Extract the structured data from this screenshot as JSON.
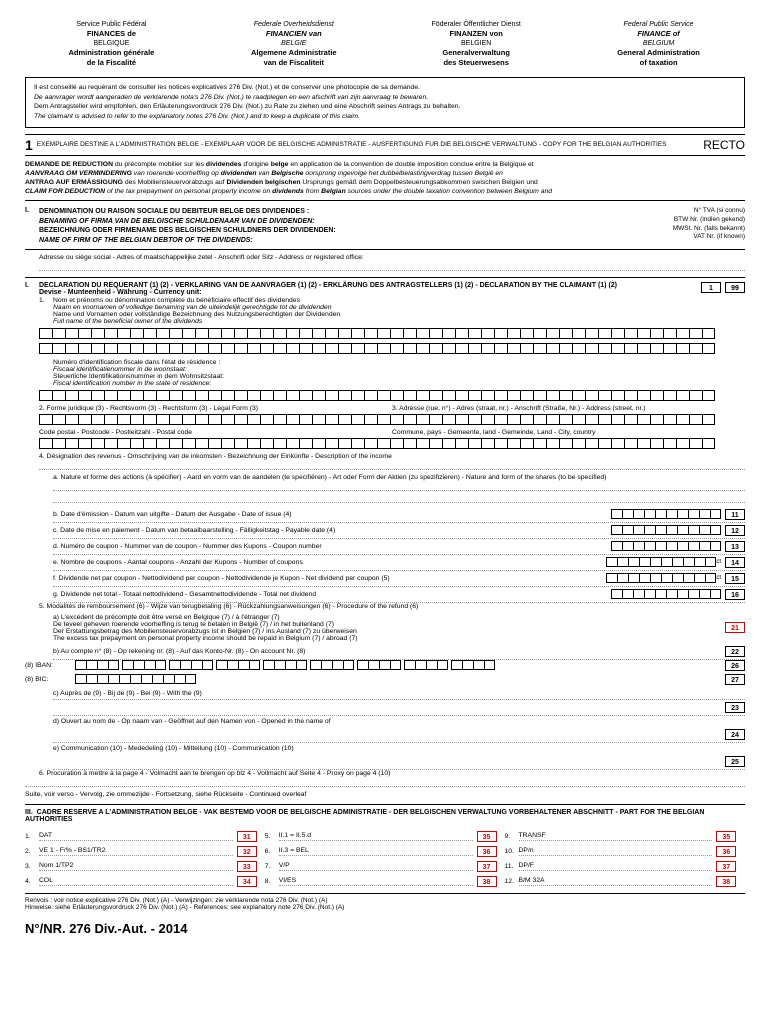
{
  "header": {
    "cols": [
      {
        "l1": "Service Public Fédéral",
        "l2": "FINANCES de",
        "l3": "BELGIQUE",
        "l4": "Administration générale",
        "l5": "de la Fiscalité"
      },
      {
        "l1": "Federale Overheidsdienst",
        "l2": "FINANCIEN van",
        "l3": "BELGIE",
        "l4": "Algemene Administratie",
        "l5": "van de Fiscaliteit"
      },
      {
        "l1": "Föderaler Öffentlicher Dienst",
        "l2": "FINANZEN von",
        "l3": "BELGIEN",
        "l4": "Generalverwaltung",
        "l5": "des Steuerwesens"
      },
      {
        "l1": "Federal Public Service",
        "l2": "FINANCE of",
        "l3": "BELGIUM",
        "l4": "General Administration",
        "l5": "of taxation"
      }
    ]
  },
  "advice": {
    "fr": "Il est conseillé au requérant de consulter les notices explicatives 276 Div. (Not.) et de conserver une photocopie de sa demande.",
    "nl": "De aanvrager wordt aangeraden de verklarende nota's 276 Div. (Not.) te raadplegen en een afschrift van zijn aanvraag te bewaren.",
    "de": "Dem Antragsteller wird empfohlen, den Erläuterungsvordruck 276 Div. (Not.) zu Rate zu ziehen und eine Abschrift seines Antrags zu behalten.",
    "en": "The claimant is advised to refer to the explanatory notes 276 Div. (Not.) and to keep a duplicate of this claim."
  },
  "bar1": {
    "num": "1",
    "text": "EXEMPLAIRE DESTINE A L'ADMINISTRATION BELGE - EXEMPLAAR VOOR DE BELGISCHE ADMINISTRATIE - AUSFERTIGUNG FUR DIE BELGISCHE VERWALTUNG - COPY FOR THE BELGIAN AUTHORITIES",
    "recto": "RECTO"
  },
  "demande": {
    "l1a": "DEMANDE DE REDUCTION ",
    "l1b": "du précompte mobilier sur les ",
    "l1c": "dividendes ",
    "l1d": "d'origine ",
    "l1e": "belge ",
    "l1f": "en application de la convention de double imposition conclue entre la Belgique et",
    "l2a": "AANVRAAG OM VERMINDERING ",
    "l2b": "van roerende voorheffing op ",
    "l2c": "dividenden ",
    "l2d": "van ",
    "l2e": "Belgische ",
    "l2f": "oorsprong ingevolge het dubbelbelastingverdrag tussen België en",
    "l3a": "ANTRAG AUF ERMÄSSIGUNG ",
    "l3b": "des Mobiliensteuervorabzugs auf ",
    "l3c": "Dividenden belgischen ",
    "l3d": "Ursprungs gemäß dem Doppelbesteuerungsabkommen swischen Belgien und",
    "l4a": "CLAIM FOR DEDUCTION ",
    "l4b": "of the tax prepayment on personal property income on ",
    "l4c": "dividends ",
    "l4d": "from ",
    "l4e": "Belgian ",
    "l4f": "sources under the double taxation convention between Belgium and"
  },
  "sectionI": {
    "roman": "I.",
    "l1": "DENOMINATION OU RAISON SOCIALE DU DEBITEUR BELGE DES DIVIDENDES :",
    "l2": "BENAMING OF FIRMA VAN DE BELGISCHE SCHULDENAAR VAN DE DIVIDENDEN:",
    "l3": "BEZEICHNUNG ODER FIRMENAME DES BELGISCHEN SCHULDNERS DER DIVIDENDEN:",
    "l4": "NAME OF FIRM OF THE BELGIAN DEBTOR OF THE DIVIDENDS:",
    "r1": "N° TVA (si connu)",
    "r2": "BTW Nr. (indien gekend)",
    "r3": "MWSt. Nr. (falls bekannt)",
    "r4": "VAT Nr. (if known)",
    "adresse": "Adresse ou siège social - Adres of maatschappelijke zetel - Anschrift oder Sitz - Address or registered office:"
  },
  "sectionII": {
    "roman": "I.",
    "title": "DECLARATION DU REQUERANT (1) (2) - VERKLARING VAN DE AANVRAGER (1) (2) - ERKLÄRUNG DES ANTRAGSTELLERS (1) (2) - DECLARATION BY THE CLAIMANT (1) (2)",
    "devise": "Devise - Munteenheid - Währung - Currency unit:",
    "box99": "99",
    "box1": "1",
    "item1": {
      "num": "1.",
      "l1": "Nom et prénoms ou dénomination complète du bénéficiaire effectif des dividendes",
      "l2": "Naam en voornamen of volledige benaming van de uiteindelijk gerechtigde tot de dividenden",
      "l3": "Name und Vornamen oder vollständige Bezeichnung des Nutzungsberechtigten der Dividenden",
      "l4": "Full name of the beneficial owner of the dividends"
    },
    "fiscal": {
      "l1": "Numéro d'identification fiscale dans l'état de résidence :",
      "l2": "Fiscaal identificatienummer in de woonstaat:",
      "l3": "Steuerliche Identifikationsnummer in dem Wohnsitzstaat:",
      "l4": "Fiscal identification number in the state of residence:"
    },
    "item2": "2.   Forme juridique (3) - Rechtsvorm (3) - Rechtsform (3) - Legal Form (3)",
    "item3": "3.   Adresse (rue, n°) - Adres (straat, nr.) - Anschrift (Straße, Nr.) - Address (street, nr.)",
    "postal": "Code postal - Postcode - Postleitzahl - Postal code",
    "commune": "Commune, pays - Gemeente, land - Gemeinde, Land - City, country",
    "item4": "4.   Désignation des revenus - Omschrijving van de inkomsten - Bezeichnung der Einkünfte - Description of the income",
    "item4a": "a.   Nature et forme des actions (à spécifier) - Aard en vorm van de aandelen (te specifiëren) - Art oder Form der Aktien (zu spezifizieren) - Nature and form of the shares (to be specified)",
    "rows": [
      {
        "k": "b.",
        "t": "Date d'émission - Datum van uitgifte - Datum der Ausgabe - Date of issue (4)",
        "n": "11"
      },
      {
        "k": "c.",
        "t": "Date de mise en paiement - Datum van betaalbaarstelling - Fälligkeitstag - Payable date (4)",
        "n": "12"
      },
      {
        "k": "d.",
        "t": "Numéro de coupon - Nummer van de coupon - Nummer des Kupons - Coupon number",
        "n": "13"
      },
      {
        "k": "e.",
        "t": "Nombre de coupons - Aantal coupons - Anzahl der Kupons - Number of coupons",
        "n": "14"
      },
      {
        "k": "f.",
        "t": "Dividende net par coupon - Nettodividend per coupon - Nettodividende je Kupon - Net dividend per coupon (5)",
        "n": "15"
      },
      {
        "k": "g.",
        "t": "Dividende net total - Totaal nettodividend - Gesamtnettodividende - Total net dividend",
        "n": "16"
      }
    ],
    "item5": "5.   Modalités de remboursement (6) - Wijze van terugbetaling (6) - Rückzahlungsanweisungen (6) - Procedure of the refund (6)",
    "item5a1": "a)   L'excédent de précompte doit être versé en Belgique (7) / à l'étranger (7)",
    "item5a2": "De teveel geheven roerende voorheffing is terug te betalen in België (7) / in het buitenland (7)",
    "item5a3": "Der Erstattungsbetrag des Mobiliensteuervorabzugs ist in Belgien (7) / ins Ausland (7) zu überweisen",
    "item5a4": "The excess tax prepayment on personal property income should be repaid in Belgium (7) / abroad (7)",
    "item5b": "b)   Au compte n° (8) - Op rekening nr. (8) - Auf das Konto-Nr. (8) - On account Nr. (8)",
    "n21": "21",
    "n22": "22",
    "n26": "26",
    "n27": "27",
    "iban": "(8) IBAN:",
    "bic": "(8) BIC:",
    "item5c": "c)   Auprès de (9) - Bij de (9) - Bei (9) - With the (9)",
    "n23": "23",
    "item5d": "d)   Ouvert au nom de - Op naam van - Geöffnet auf den Namen von - Opened in the name of",
    "n24": "24",
    "item5e": "e)   Communication (10) - Mededeling (10) - Mitteilung (10) - Communication (10)",
    "n25": "25",
    "item6": "6.   Procuration à mettre à la page 4 - Volmacht aan te brengen op blz 4 - Vollmacht auf Seite 4 - Proxy on page 4 (10)",
    "suite": "Suite, voir verso - Vervolg, zie ommezijde - Fortsetzung, siehe Rückseite - Continued overleaf"
  },
  "sectionIII": {
    "roman": "III.",
    "title": "CADRE RESERVE A L'ADMINISTRATION BELGE - VAK BESTEMD VOOR DE BELGISCHE ADMINISTRATIE - DER BELGISCHEN VERWALTUNG VORBEHALTENER ABSCHNITT - PART FOR THE BELGIAN AUTHORITIES",
    "items": [
      [
        {
          "n": "1.",
          "l": "DAT",
          "b": "31"
        },
        {
          "n": "2.",
          "l": "VE 1 - F/% - BS1/TR2",
          "b": "32"
        },
        {
          "n": "3.",
          "l": "Nom 1/TP2",
          "b": "33"
        },
        {
          "n": "4.",
          "l": "COL",
          "b": "34"
        }
      ],
      [
        {
          "n": "5.",
          "l": "II.1 = II.5.d",
          "b": "35"
        },
        {
          "n": "6.",
          "l": "II.3 = BEL",
          "b": "36"
        },
        {
          "n": "7.",
          "l": "V/P",
          "b": "37"
        },
        {
          "n": "8.",
          "l": "VI/ES",
          "b": "38"
        }
      ],
      [
        {
          "n": "9.",
          "l": "TRANSF",
          "b": "35"
        },
        {
          "n": "10.",
          "l": "DP/n",
          "b": "36"
        },
        {
          "n": "11.",
          "l": "DP/F",
          "b": "37"
        },
        {
          "n": "12.",
          "l": "B/M 32A",
          "b": "38"
        }
      ]
    ]
  },
  "footnote": {
    "l1": "Renvois : voir notice explicative 276 Div. (Not.) (A) - Verwijzingen: zie verklarende nota 276 Div. (Not.) (A)",
    "l2": "Hinweise: siehe Erläuterungsvordruck 276 Div. (Not.) (A) - References: see explanatory note 276 Div. (Not.) (A)"
  },
  "formNr": "N°/NR. 276 Div.-Aut. - 2014"
}
